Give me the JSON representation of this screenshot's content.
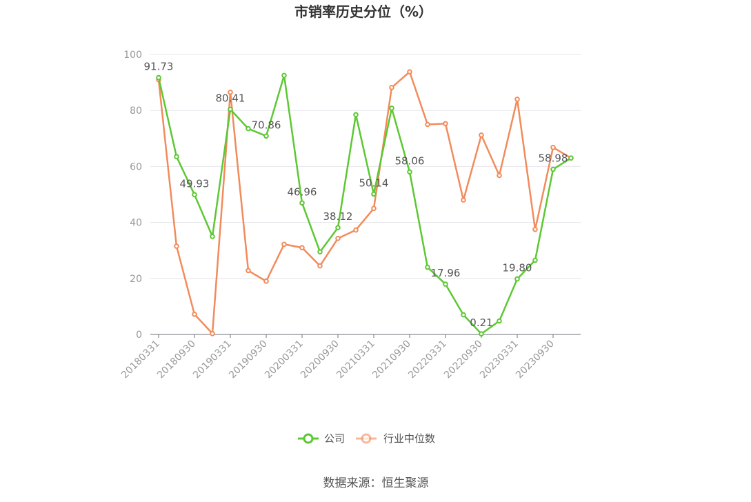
{
  "title": "市销率历史分位（%）",
  "source": "数据来源：恒生聚源",
  "colors": {
    "company": "#5cc832",
    "industry": "#f28b5b",
    "grid": "#e6e6ec",
    "axis": "#6e7079"
  },
  "chart_data": {
    "type": "line",
    "title": "市销率历史分位（%）",
    "ylim": [
      0,
      100
    ],
    "yticks": [
      0,
      20,
      40,
      60,
      80,
      100
    ],
    "grid": true,
    "legend_position": "bottom",
    "x": [
      "20180331",
      "20180630",
      "20180930",
      "20181231",
      "20190331",
      "20190630",
      "20190930",
      "20191231",
      "20200331",
      "20200630",
      "20200930",
      "20201231",
      "20210331",
      "20210630",
      "20210930",
      "20211231",
      "20220331",
      "20220630",
      "20220930",
      "20221231",
      "20230331",
      "20230630",
      "20230930",
      "20231231"
    ],
    "xtick_labels": [
      "20180331",
      "20180930",
      "20190331",
      "20190930",
      "20200331",
      "20200930",
      "20210331",
      "20210930",
      "20220331",
      "20220930",
      "20230331",
      "20230930"
    ],
    "series": [
      {
        "name": "公司",
        "values": [
          91.73,
          63.5,
          49.93,
          35.0,
          80.41,
          73.5,
          70.86,
          92.5,
          46.96,
          29.5,
          38.12,
          78.5,
          50.14,
          80.8,
          58.06,
          24.0,
          17.96,
          7.0,
          0.21,
          4.8,
          19.8,
          26.5,
          58.98,
          63.0
        ]
      },
      {
        "name": "行业中位数",
        "values": [
          91.0,
          31.5,
          7.2,
          0.3,
          86.5,
          22.8,
          19.0,
          32.2,
          31.0,
          24.5,
          34.3,
          37.3,
          45.0,
          88.2,
          93.8,
          75.0,
          75.3,
          48.0,
          71.2,
          56.8,
          84.0,
          37.5,
          66.8,
          63.0
        ]
      }
    ],
    "data_labels": [
      {
        "series": 0,
        "index": 0,
        "text": "91.73"
      },
      {
        "series": 0,
        "index": 2,
        "text": "49.93"
      },
      {
        "series": 0,
        "index": 4,
        "text": "80.41"
      },
      {
        "series": 0,
        "index": 6,
        "text": "70.86"
      },
      {
        "series": 0,
        "index": 8,
        "text": "46.96"
      },
      {
        "series": 0,
        "index": 10,
        "text": "38.12"
      },
      {
        "series": 0,
        "index": 12,
        "text": "50.14"
      },
      {
        "series": 0,
        "index": 14,
        "text": "58.06"
      },
      {
        "series": 0,
        "index": 16,
        "text": "17.96"
      },
      {
        "series": 0,
        "index": 18,
        "text": "0.21"
      },
      {
        "series": 0,
        "index": 20,
        "text": "19.80"
      },
      {
        "series": 0,
        "index": 22,
        "text": "58.98"
      }
    ]
  }
}
